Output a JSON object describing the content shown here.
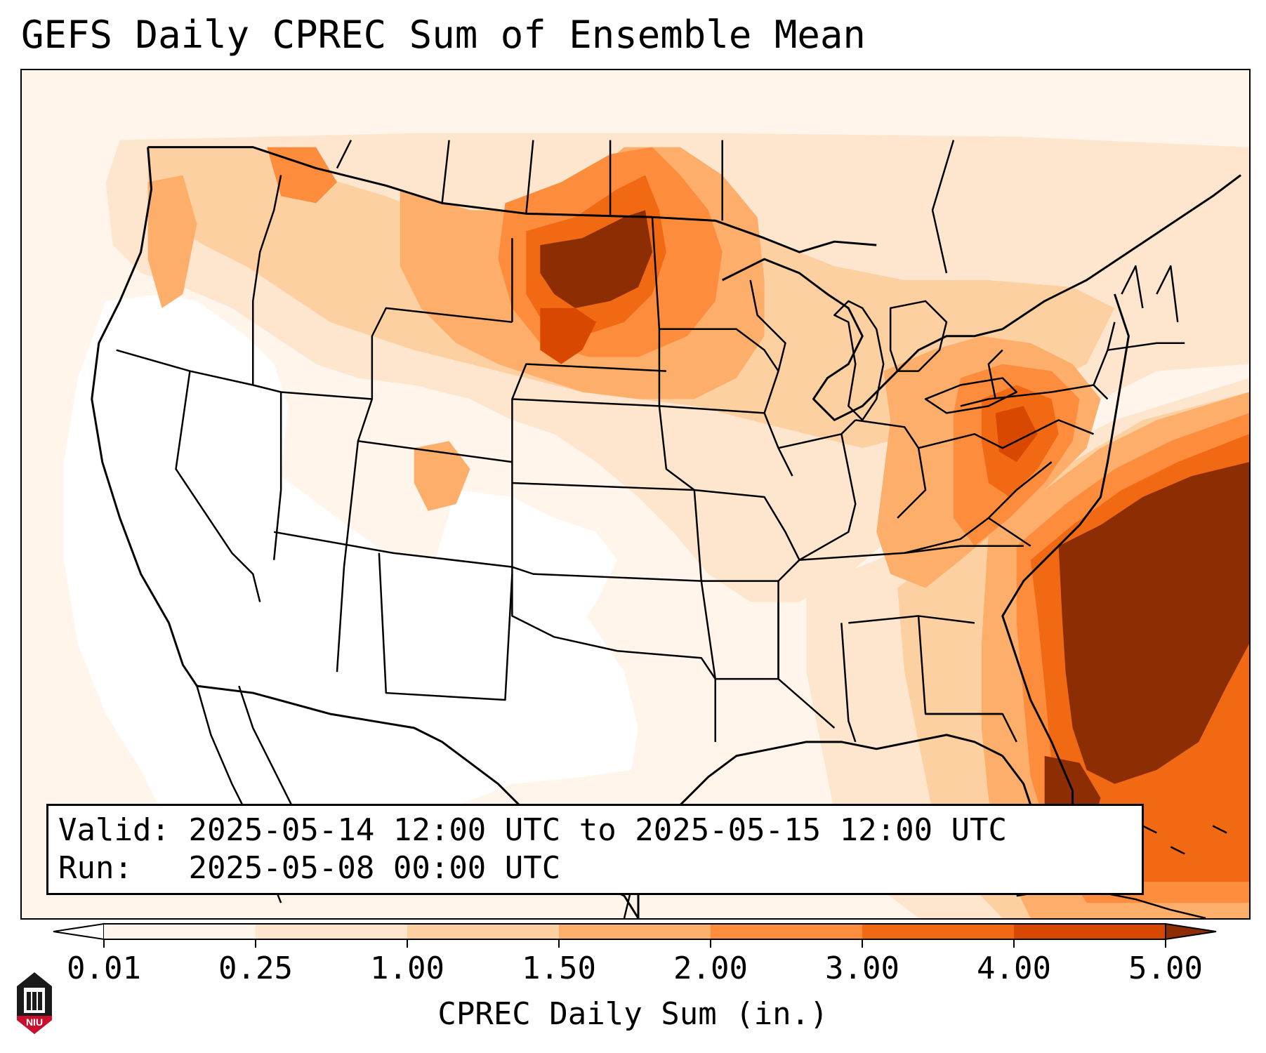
{
  "title": "GEFS Daily CPREC Sum of Ensemble Mean",
  "info": {
    "valid_label": "Valid:",
    "valid_value": "2025-05-14 12:00 UTC to 2025-05-15 12:00 UTC",
    "run_label": "Run:",
    "run_value": "2025-05-08 00:00 UTC"
  },
  "colorbar": {
    "label": "CPREC Daily Sum (in.)",
    "ticks": [
      "0.01",
      "0.25",
      "1.00",
      "1.50",
      "2.00",
      "3.00",
      "4.00",
      "5.00"
    ],
    "colors": [
      "#fff5eb",
      "#fee6ce",
      "#fdd0a2",
      "#fdae6b",
      "#fd8d3c",
      "#f16913",
      "#d94801",
      "#8c2d04"
    ]
  },
  "logo": {
    "text": "NIU",
    "color": "#c8102e"
  },
  "map_levels": {
    "white": "#ffffff",
    "l0": "#fff5eb",
    "l1": "#fee6ce",
    "l2": "#fdd0a2",
    "l3": "#fdae6b",
    "l4": "#fd8d3c",
    "l5": "#f16913",
    "l6": "#d94801",
    "l7": "#8c2d04"
  }
}
